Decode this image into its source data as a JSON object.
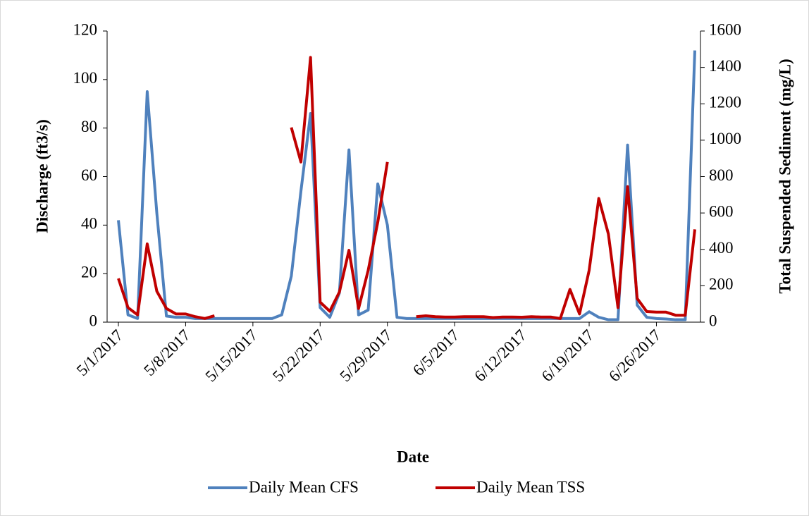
{
  "chart_data": {
    "type": "line",
    "xlabel": "Date",
    "ylabel": "Discharge (ft3/s)",
    "y2label": "Total Suspended Sediment (mg/L)",
    "categories": [
      "5/1/2017",
      null,
      null,
      null,
      null,
      null,
      null,
      "5/8/2017",
      null,
      null,
      null,
      null,
      null,
      null,
      "5/15/2017",
      null,
      null,
      null,
      null,
      null,
      null,
      "5/22/2017",
      null,
      null,
      null,
      null,
      null,
      null,
      "5/29/2017",
      null,
      null,
      null,
      null,
      null,
      null,
      "6/5/2017",
      null,
      null,
      null,
      null,
      null,
      null,
      "6/12/2017",
      null,
      null,
      null,
      null,
      null,
      null,
      "6/19/2017",
      null,
      null,
      null,
      null,
      null,
      null,
      "6/26/2017",
      null,
      null,
      null,
      null
    ],
    "ylim": [
      0,
      120
    ],
    "yticks": [
      0,
      20,
      40,
      60,
      80,
      100,
      120
    ],
    "y2lim": [
      0,
      1600
    ],
    "y2ticks": [
      0,
      200,
      400,
      600,
      800,
      1000,
      1200,
      1400,
      1600
    ],
    "grid": false,
    "legend": "bottom",
    "series": [
      {
        "name": "Daily Mean CFS",
        "color": "#4f81bd",
        "values": [
          42,
          3,
          1.5,
          95,
          45,
          2.5,
          2,
          2,
          1.5,
          1.5,
          1.5,
          1.5,
          1.5,
          1.5,
          1.5,
          1.5,
          1.5,
          3,
          19,
          54,
          86,
          6,
          2,
          12,
          71,
          3,
          5,
          57,
          40,
          2,
          1.5,
          1.5,
          1.5,
          1.5,
          1.5,
          1.5,
          1.5,
          1.5,
          1.5,
          1.5,
          1.5,
          1.5,
          1.5,
          1.5,
          1.5,
          1.5,
          1.5,
          1.5,
          1.5,
          4.3,
          2,
          1,
          1,
          73,
          7,
          2,
          1.5,
          1.3,
          1,
          1,
          112
        ]
      },
      {
        "name": "Daily Mean TSS",
        "color": "#c00000",
        "axis": "y2",
        "values": [
          240,
          80,
          40,
          430,
          170,
          75,
          45,
          45,
          30,
          20,
          35,
          null,
          null,
          null,
          null,
          null,
          null,
          null,
          1070,
          880,
          1455,
          110,
          60,
          165,
          395,
          75,
          285,
          550,
          880,
          null,
          null,
          30,
          35,
          30,
          28,
          28,
          30,
          30,
          30,
          25,
          28,
          28,
          27,
          30,
          28,
          28,
          20,
          180,
          45,
          285,
          680,
          485,
          80,
          745,
          130,
          58,
          55,
          55,
          38,
          38,
          510
        ]
      }
    ]
  }
}
